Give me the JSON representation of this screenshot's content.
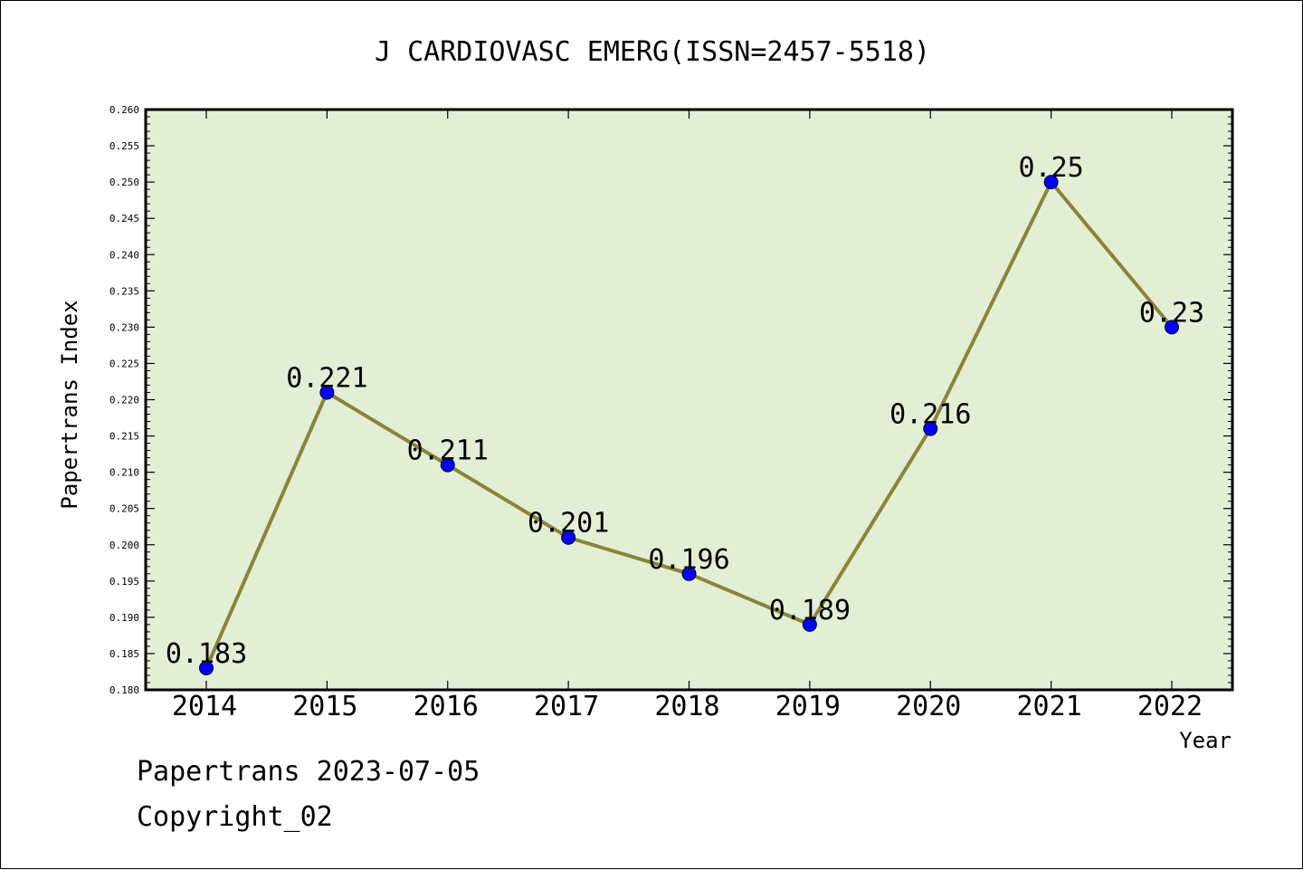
{
  "chart_data": {
    "type": "line",
    "title": "J CARDIOVASC EMERG(ISSN=2457-5518)",
    "xlabel": "Year",
    "ylabel": "Papertrans Index",
    "categories": [
      "2014",
      "2015",
      "2016",
      "2017",
      "2018",
      "2019",
      "2020",
      "2021",
      "2022"
    ],
    "series": [
      {
        "values": [
          0.183,
          0.221,
          0.211,
          0.201,
          0.196,
          0.189,
          0.216,
          0.25,
          0.23
        ]
      }
    ],
    "data_labels": [
      "0.183",
      "0.221",
      "0.211",
      "0.201",
      "0.196",
      "0.189",
      "0.216",
      "0.25",
      "0.23"
    ],
    "ylim": [
      0.18,
      0.26
    ],
    "yticks": [
      "0.180",
      "0.185",
      "0.190",
      "0.195",
      "0.200",
      "0.205",
      "0.210",
      "0.215",
      "0.220",
      "0.225",
      "0.230",
      "0.235",
      "0.240",
      "0.245",
      "0.250",
      "0.255",
      "0.260"
    ],
    "grid": false,
    "colors": {
      "plot_background": "#e2efd5",
      "line": "#8b8338",
      "marker": "#0000ff"
    }
  },
  "footer": {
    "date_text": "Papertrans 2023-07-05",
    "copyright": "Copyright_02"
  }
}
